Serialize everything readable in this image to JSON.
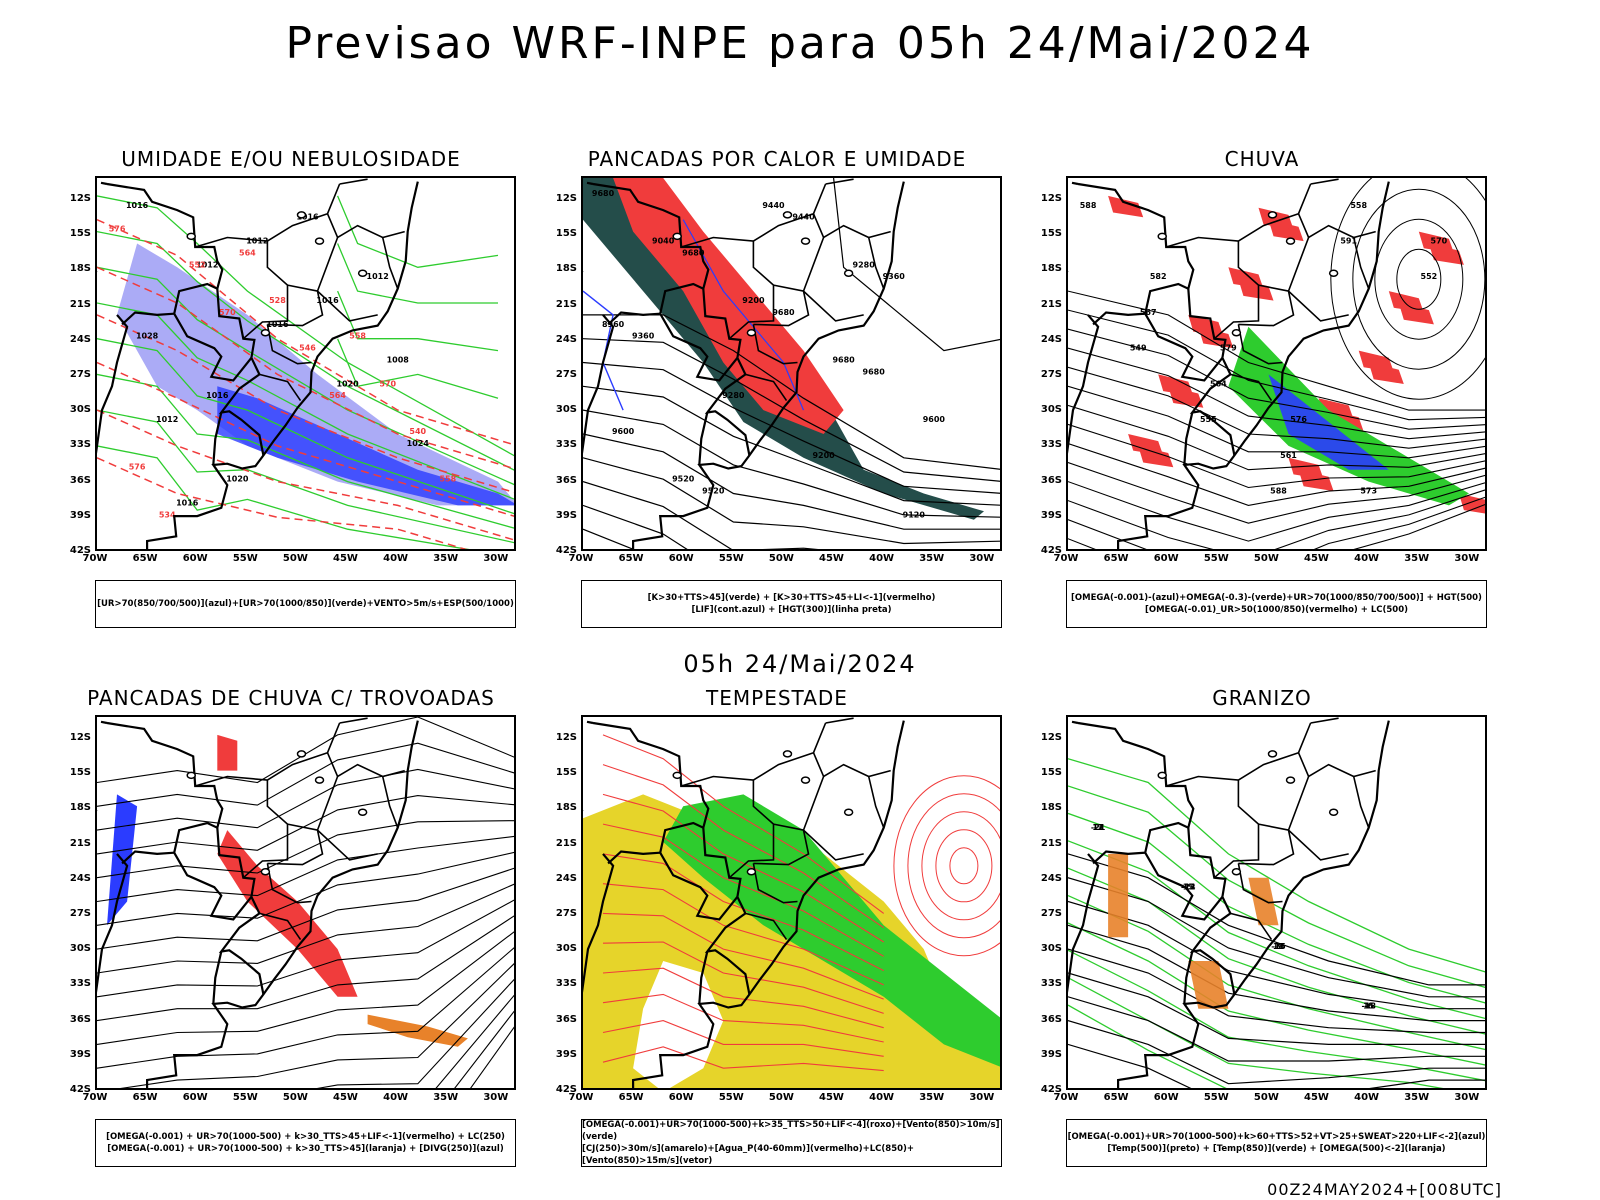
{
  "header": {
    "title": "Previsao WRF-INPE  para 05h 24/Mai/2024"
  },
  "middle": {
    "title": "05h 24/Mai/2024"
  },
  "footer": {
    "timestamp": "00Z24MAY2024+[008UTC]"
  },
  "axes": {
    "lat_labels": [
      "12S",
      "15S",
      "18S",
      "21S",
      "24S",
      "27S",
      "30S",
      "33S",
      "36S",
      "39S",
      "42S"
    ],
    "lon_labels": [
      "70W",
      "65W",
      "60W",
      "55W",
      "50W",
      "45W",
      "40W",
      "35W",
      "30W"
    ]
  },
  "colors": {
    "blue": "#2b3cff",
    "light_blue": "#9c9cf5",
    "green": "#2ecc2e",
    "bright_green": "#22d022",
    "red": "#f03c3c",
    "dark_teal": "#244d4a",
    "yellow": "#e6d42a",
    "orange": "#e8822a",
    "black": "#000000"
  },
  "panels": [
    {
      "id": "umidade",
      "title": "UMIDADE E/OU NEBULOSIDADE",
      "legend": [
        "[UR>70(850/700/500)](azul)+[UR>70(1000/850)](verde)+VENTO>5m/s+ESP(500/1000)"
      ],
      "contour_labels": [
        "1016",
        "1012",
        "1016",
        "1020",
        "1024",
        "1016",
        "1012",
        "1016",
        "1008",
        "1012",
        "1020",
        "1016",
        "1012",
        "1028",
        "1016",
        "576",
        "570",
        "564",
        "558",
        "552",
        "546",
        "540",
        "534",
        "528",
        "570",
        "576",
        "564",
        "558"
      ]
    },
    {
      "id": "pancadas_calor",
      "title": "PANCADAS POR CALOR E UMIDADE",
      "legend": [
        "[K>30+TTS>45](verde) + [K>30+TTS>45+LI<-1](vermelho)",
        "[LIF](cont.azul) + [HGT(300)](linha preta)"
      ],
      "contour_labels": [
        "9680",
        "9680",
        "9680",
        "9680",
        "9600",
        "9520",
        "9440",
        "9360",
        "9360",
        "9280",
        "9200",
        "9120",
        "9040",
        "9200",
        "9680",
        "9600",
        "9520",
        "9440",
        "9280",
        "8960"
      ]
    },
    {
      "id": "chuva",
      "title": "CHUVA",
      "legend": [
        "[OMEGA(-0.001)-(azul)+OMEGA(-0.3)-(verde)+UR>70(1000/850/700/500)] + HGT(500)",
        "[OMEGA(-0.01)_UR>50(1000/850)(vermelho) + LC(500)"
      ],
      "contour_labels": [
        "588",
        "582",
        "579",
        "576",
        "573",
        "570",
        "567",
        "564",
        "561",
        "558",
        "552",
        "549",
        "555",
        "588",
        "591"
      ]
    },
    {
      "id": "trovoadas",
      "title": "PANCADAS DE CHUVA C/ TROVOADAS",
      "legend": [
        "[OMEGA(-0.001) + UR>70(1000-500) + k>30_TTS>45+LIF<-1](vermelho) + LC(250)",
        "[OMEGA(-0.001) + UR>70(1000-500) + k>30_TTS>45](laranja) + [DIVG(250)](azul)"
      ]
    },
    {
      "id": "tempestade",
      "title": "TEMPESTADE",
      "legend": [
        "[OMEGA(-0.001)+UR>70(1000-500)+k>35_TTS>50+LIF<-4](roxo)+[Vento(850)>10m/s](verde)",
        "[CJ(250)>30m/s](amarelo)+[Agua_P(40-60mm)](vermelho)+LC(850)+[Vento(850)>15m/s](vetor)"
      ]
    },
    {
      "id": "granizo",
      "title": "GRANIZO",
      "legend": [
        "[OMEGA(-0.001)+UR>70(1000-500)+k>60+TTS>52+VT>25+SWEAT>220+LIF<-2](azul)",
        "[Temp(500)](preto) + [Temp(850)](verde) + [OMEGA(500)<-2](laranja)"
      ],
      "contour_labels": [
        "-3",
        "-12",
        "-15",
        "-18",
        "-21",
        "-24",
        "-9",
        "-6",
        "12",
        "15",
        "18",
        "15",
        "12"
      ]
    }
  ]
}
